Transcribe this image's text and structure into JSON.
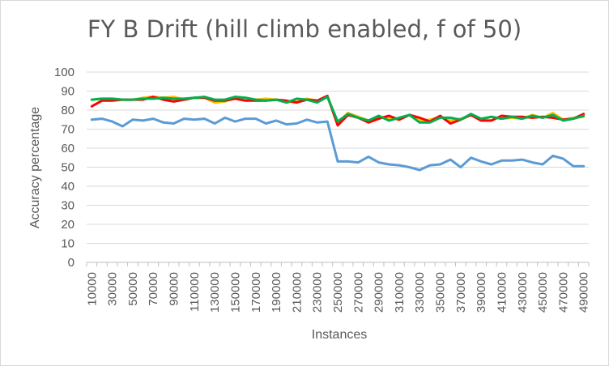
{
  "chart_data": {
    "type": "line",
    "title": "FY B Drift (hill climb enabled, f of 50)",
    "xlabel": "Instances",
    "ylabel": "Accuracy percentage",
    "ylim": [
      0,
      100
    ],
    "yticks": [
      0,
      10,
      20,
      30,
      40,
      50,
      60,
      70,
      80,
      90,
      100
    ],
    "xtick_labels": [
      "10000",
      "30000",
      "50000",
      "70000",
      "90000",
      "110000",
      "130000",
      "150000",
      "170000",
      "190000",
      "210000",
      "230000",
      "250000",
      "270000",
      "290000",
      "310000",
      "330000",
      "350000",
      "370000",
      "390000",
      "410000",
      "430000",
      "450000",
      "470000",
      "490000"
    ],
    "x": [
      10000,
      20000,
      30000,
      40000,
      50000,
      60000,
      70000,
      80000,
      90000,
      100000,
      110000,
      120000,
      130000,
      140000,
      150000,
      160000,
      170000,
      180000,
      190000,
      200000,
      210000,
      220000,
      230000,
      240000,
      250000,
      260000,
      270000,
      280000,
      290000,
      300000,
      310000,
      320000,
      330000,
      340000,
      350000,
      360000,
      370000,
      380000,
      390000,
      400000,
      410000,
      420000,
      430000,
      440000,
      450000,
      460000,
      470000,
      480000,
      490000
    ],
    "grid": true,
    "legend": "none",
    "series": [
      {
        "color": "#ffc000",
        "values": [
          85.5,
          86,
          86,
          85.5,
          85.5,
          86.5,
          87,
          86.5,
          87,
          85.5,
          86.5,
          86.5,
          84,
          84.5,
          87,
          86.5,
          85.5,
          86,
          85.5,
          84,
          84.5,
          86,
          85,
          87,
          73.5,
          78.5,
          76.5,
          74.5,
          76.5,
          76,
          75,
          77.5,
          74.5,
          75,
          76.5,
          74.5,
          75.5,
          77.5,
          75,
          76.5,
          75.5,
          76,
          75.5,
          77.5,
          76,
          78.5,
          75,
          76,
          76.5
        ]
      },
      {
        "color": "#ff0000",
        "values": [
          82,
          85,
          85,
          85.5,
          85.5,
          85.5,
          87,
          85.5,
          84.5,
          85.5,
          86.5,
          86.5,
          85,
          85,
          86,
          85,
          85,
          85,
          85.5,
          85,
          84,
          85.5,
          85,
          87.5,
          72,
          77.5,
          76,
          73.5,
          75.5,
          77,
          75,
          77.5,
          76,
          74,
          77,
          73,
          75,
          77.5,
          74.5,
          74.5,
          77,
          76.5,
          76.5,
          76,
          76.5,
          76,
          75,
          75.5,
          78
        ]
      },
      {
        "color": "#00b050",
        "values": [
          85.5,
          86,
          86,
          85.5,
          85.5,
          86,
          86,
          86.5,
          86,
          86,
          86.5,
          87,
          85.5,
          85.5,
          87,
          86.5,
          85.5,
          85,
          85.5,
          84,
          86,
          85.5,
          84,
          87,
          74,
          78,
          76,
          74.5,
          77,
          74.5,
          76,
          77.5,
          73.5,
          73.5,
          76,
          76,
          75,
          78,
          75.5,
          76.5,
          75.5,
          76.5,
          75.5,
          77,
          76,
          77.5,
          74.5,
          75.5,
          77
        ]
      },
      {
        "color": "#5b9bd5",
        "values": [
          75,
          75.5,
          74,
          71.5,
          75,
          74.5,
          75.5,
          73.5,
          73,
          75.5,
          75,
          75.5,
          73,
          76,
          74,
          75.5,
          75.5,
          73,
          74.5,
          72.5,
          73,
          75,
          73.5,
          74,
          53,
          53,
          52.5,
          55.5,
          52.5,
          51.5,
          51,
          50,
          48.5,
          51,
          51.5,
          54,
          50,
          55,
          53,
          51.5,
          53.5,
          53.5,
          54,
          52.5,
          51.5,
          56,
          54.5,
          50.5,
          50.5
        ]
      }
    ]
  }
}
